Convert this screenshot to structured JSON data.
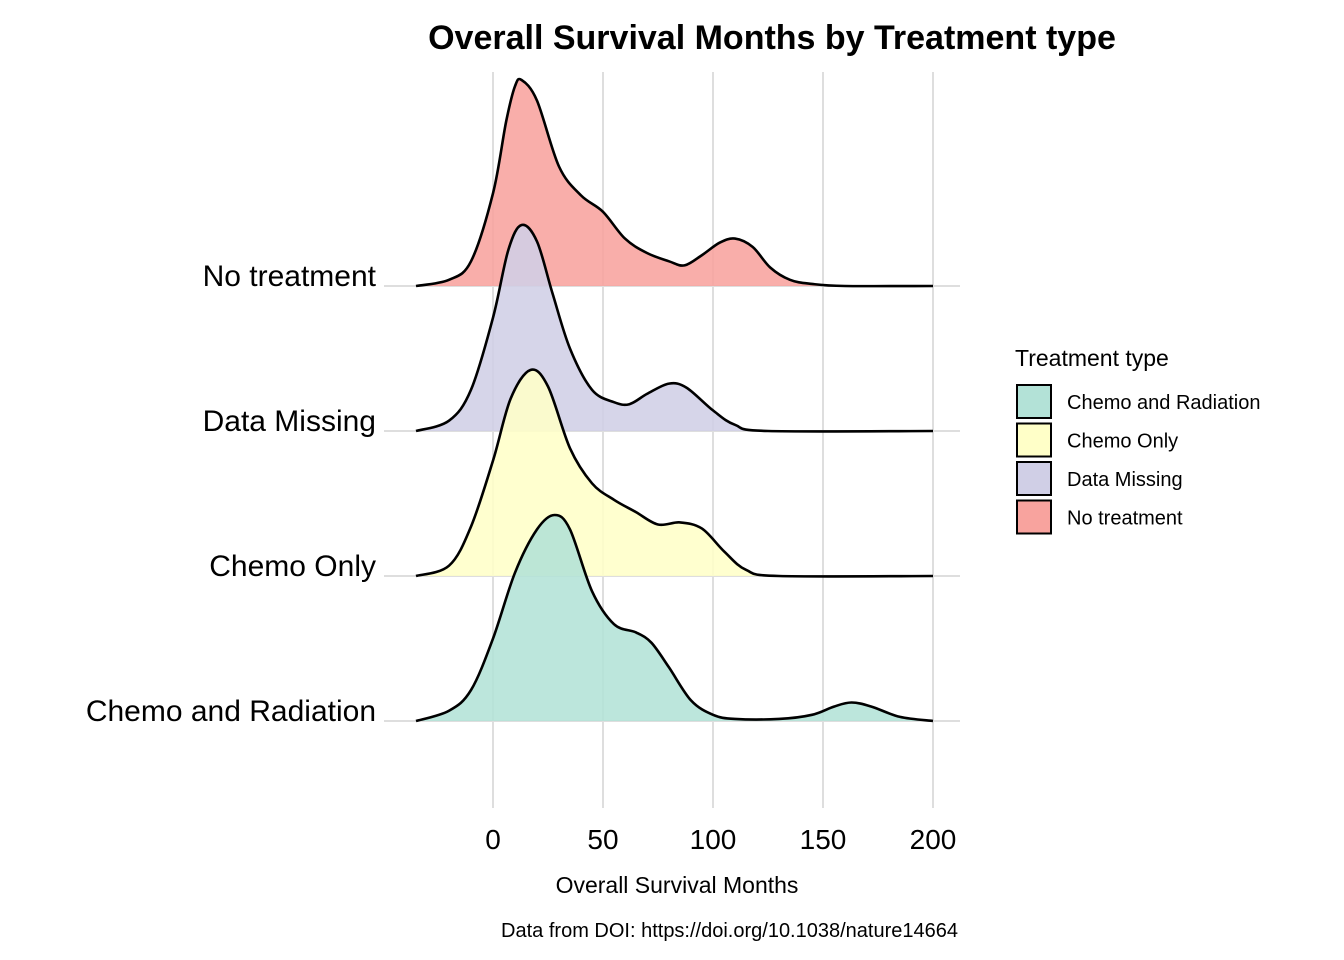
{
  "chart_data": {
    "type": "ridgeline",
    "title": "Overall Survival Months by Treatment type",
    "xlabel": "Overall Survival Months",
    "ylabel": "",
    "caption": "Data from DOI: https://doi.org/10.1038/nature14664",
    "x_ticks": [
      0,
      50,
      100,
      150,
      200
    ],
    "xlim": [
      -50,
      210
    ],
    "grid": "vertical major gridlines",
    "legend": {
      "title": "Treatment type",
      "position": "right"
    },
    "series": [
      {
        "name": "Chemo and Radiation",
        "color": "#B3E2D7",
        "density_points": [
          [
            -35,
            0.0
          ],
          [
            -20,
            0.05
          ],
          [
            -10,
            0.15
          ],
          [
            0,
            0.4
          ],
          [
            10,
            0.72
          ],
          [
            20,
            0.93
          ],
          [
            28,
            1.0
          ],
          [
            35,
            0.93
          ],
          [
            45,
            0.63
          ],
          [
            55,
            0.47
          ],
          [
            65,
            0.43
          ],
          [
            72,
            0.38
          ],
          [
            80,
            0.26
          ],
          [
            90,
            0.1
          ],
          [
            100,
            0.03
          ],
          [
            110,
            0.01
          ],
          [
            130,
            0.01
          ],
          [
            145,
            0.03
          ],
          [
            155,
            0.07
          ],
          [
            163,
            0.09
          ],
          [
            172,
            0.07
          ],
          [
            185,
            0.02
          ],
          [
            200,
            0.0
          ]
        ]
      },
      {
        "name": "Chemo Only",
        "color": "#FFFFC8",
        "density_points": [
          [
            -35,
            0.0
          ],
          [
            -20,
            0.05
          ],
          [
            -10,
            0.24
          ],
          [
            0,
            0.56
          ],
          [
            8,
            0.86
          ],
          [
            17,
            1.0
          ],
          [
            25,
            0.92
          ],
          [
            35,
            0.62
          ],
          [
            45,
            0.45
          ],
          [
            55,
            0.37
          ],
          [
            65,
            0.31
          ],
          [
            75,
            0.25
          ],
          [
            85,
            0.26
          ],
          [
            95,
            0.23
          ],
          [
            105,
            0.12
          ],
          [
            115,
            0.03
          ],
          [
            130,
            0.0
          ],
          [
            200,
            0.0
          ]
        ]
      },
      {
        "name": "Data Missing",
        "color": "#D0CFE6",
        "density_points": [
          [
            -35,
            0.0
          ],
          [
            -20,
            0.05
          ],
          [
            -10,
            0.2
          ],
          [
            0,
            0.55
          ],
          [
            7,
            0.88
          ],
          [
            13,
            1.0
          ],
          [
            20,
            0.92
          ],
          [
            27,
            0.67
          ],
          [
            35,
            0.4
          ],
          [
            45,
            0.2
          ],
          [
            55,
            0.14
          ],
          [
            62,
            0.13
          ],
          [
            70,
            0.18
          ],
          [
            80,
            0.23
          ],
          [
            88,
            0.21
          ],
          [
            100,
            0.1
          ],
          [
            110,
            0.03
          ],
          [
            125,
            0.0
          ],
          [
            200,
            0.0
          ]
        ]
      },
      {
        "name": "No treatment",
        "color": "#F8A39E",
        "density_points": [
          [
            -35,
            0.0
          ],
          [
            -20,
            0.03
          ],
          [
            -10,
            0.12
          ],
          [
            0,
            0.45
          ],
          [
            6,
            0.8
          ],
          [
            10,
            0.97
          ],
          [
            13,
            1.0
          ],
          [
            20,
            0.9
          ],
          [
            30,
            0.58
          ],
          [
            40,
            0.44
          ],
          [
            50,
            0.36
          ],
          [
            60,
            0.23
          ],
          [
            70,
            0.16
          ],
          [
            80,
            0.12
          ],
          [
            87,
            0.1
          ],
          [
            95,
            0.15
          ],
          [
            103,
            0.21
          ],
          [
            110,
            0.23
          ],
          [
            118,
            0.19
          ],
          [
            126,
            0.09
          ],
          [
            135,
            0.03
          ],
          [
            145,
            0.01
          ],
          [
            160,
            0.0
          ],
          [
            200,
            0.0
          ]
        ]
      }
    ]
  }
}
